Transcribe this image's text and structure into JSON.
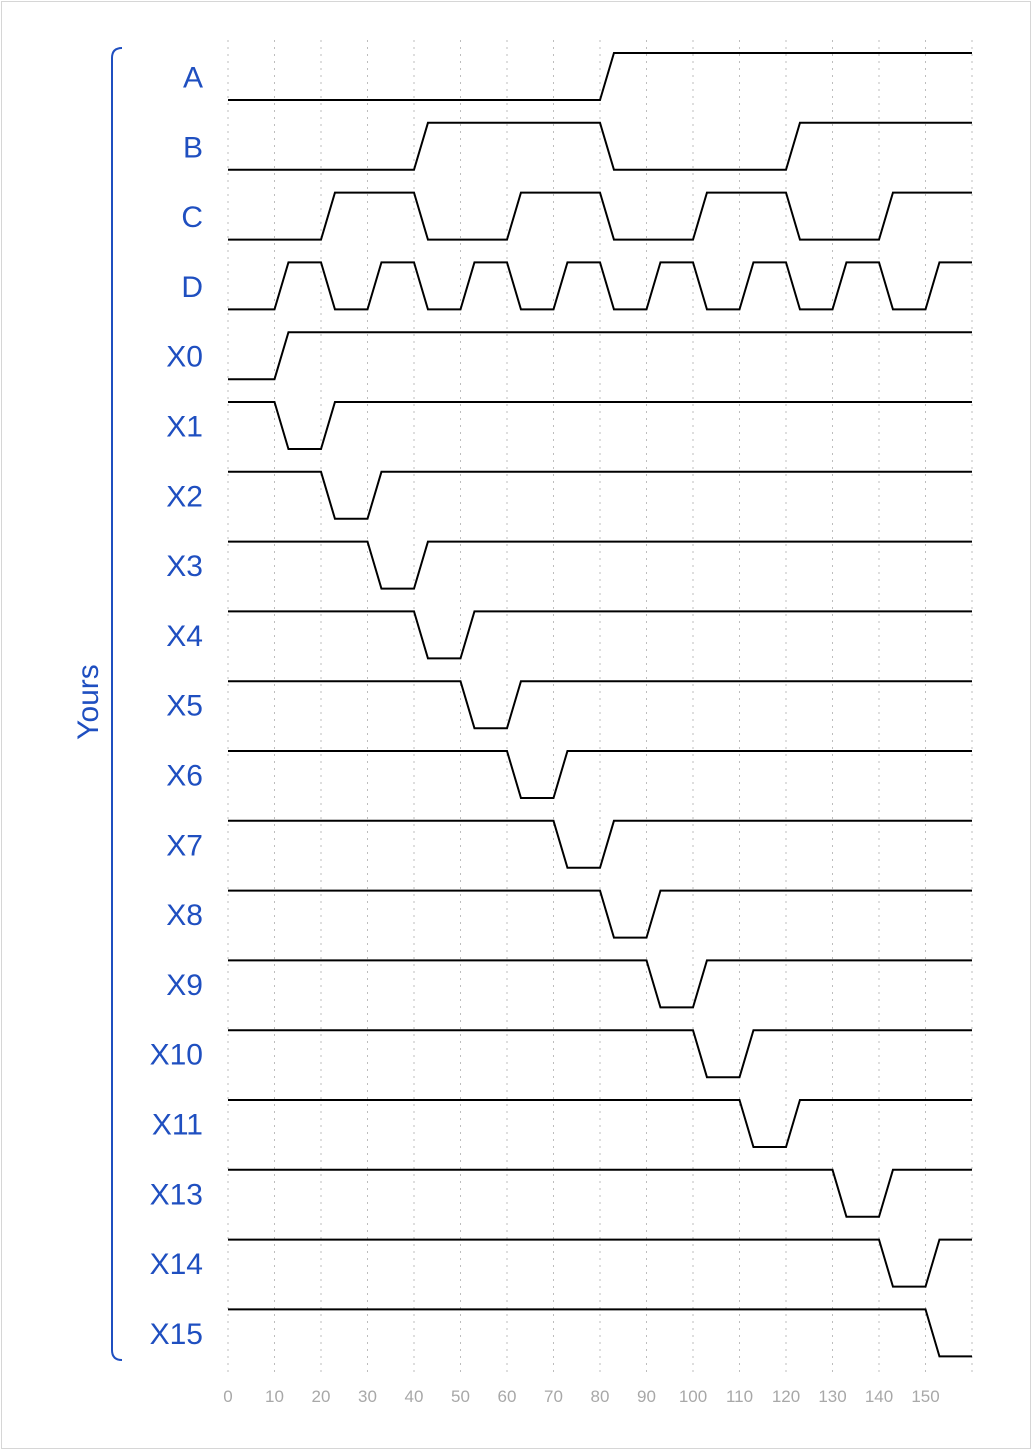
{
  "group_label": "Yours",
  "time_axis": {
    "ticks": [
      "0",
      "10",
      "20",
      "30",
      "40",
      "50",
      "60",
      "70",
      "80",
      "90",
      "100",
      "110",
      "120",
      "130",
      "140",
      "150"
    ],
    "end": 160,
    "transition_width": 3
  },
  "colors": {
    "label": "#1f4fc0",
    "wave": "#000000",
    "grid": "#bdbdbd",
    "tick": "#a8a8a8"
  },
  "signals": [
    {
      "name": "A",
      "initial": 0,
      "transitions": [
        80
      ]
    },
    {
      "name": "B",
      "initial": 0,
      "transitions": [
        40,
        80,
        120
      ]
    },
    {
      "name": "C",
      "initial": 0,
      "transitions": [
        20,
        40,
        60,
        80,
        100,
        120,
        140
      ]
    },
    {
      "name": "D",
      "initial": 0,
      "transitions": [
        10,
        20,
        30,
        40,
        50,
        60,
        70,
        80,
        90,
        100,
        110,
        120,
        130,
        140,
        150
      ]
    },
    {
      "name": "X0",
      "initial": 0,
      "transitions": [
        10
      ]
    },
    {
      "name": "X1",
      "initial": 1,
      "transitions": [
        10,
        20
      ]
    },
    {
      "name": "X2",
      "initial": 1,
      "transitions": [
        20,
        30
      ]
    },
    {
      "name": "X3",
      "initial": 1,
      "transitions": [
        30,
        40
      ]
    },
    {
      "name": "X4",
      "initial": 1,
      "transitions": [
        40,
        50
      ]
    },
    {
      "name": "X5",
      "initial": 1,
      "transitions": [
        50,
        60
      ]
    },
    {
      "name": "X6",
      "initial": 1,
      "transitions": [
        60,
        70
      ]
    },
    {
      "name": "X7",
      "initial": 1,
      "transitions": [
        70,
        80
      ]
    },
    {
      "name": "X8",
      "initial": 1,
      "transitions": [
        80,
        90
      ]
    },
    {
      "name": "X9",
      "initial": 1,
      "transitions": [
        90,
        100
      ]
    },
    {
      "name": "X10",
      "initial": 1,
      "transitions": [
        100,
        110
      ]
    },
    {
      "name": "X11",
      "initial": 1,
      "transitions": [
        110,
        120
      ]
    },
    {
      "name": "X13",
      "initial": 1,
      "transitions": [
        130,
        140
      ]
    },
    {
      "name": "X14",
      "initial": 1,
      "transitions": [
        140,
        150
      ]
    },
    {
      "name": "X15",
      "initial": 1,
      "transitions": [
        150
      ]
    }
  ]
}
